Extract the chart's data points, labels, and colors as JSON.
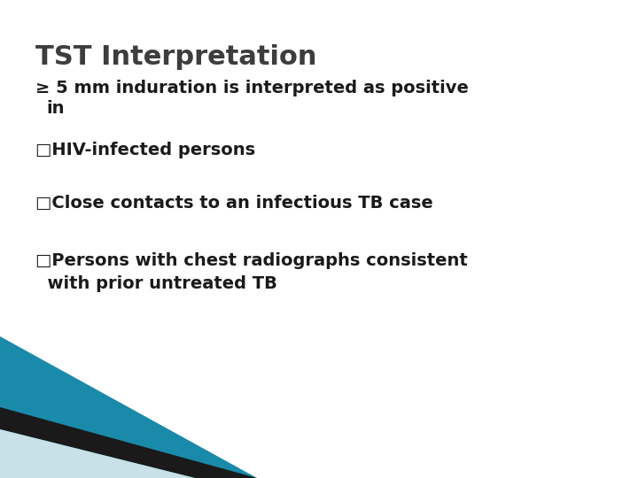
{
  "title": "TST Interpretation",
  "subtitle_line1": "≥ 5 mm induration is interpreted as positive",
  "subtitle_line2": "  in",
  "bullets": [
    "□HIV-infected persons",
    "□Close contacts to an infectious TB case",
    "□Persons with chest radiographs consistent\n  with prior untreated TB"
  ],
  "bg_color": "#ffffff",
  "title_color": "#3d3d3d",
  "text_color": "#1a1a1a",
  "title_fontsize": 22,
  "subtitle_fontsize": 14,
  "bullet_fontsize": 14,
  "corner_teal": "#1a8aaa",
  "corner_dark": "#1a1a1a",
  "corner_light": "#c8e0e8"
}
